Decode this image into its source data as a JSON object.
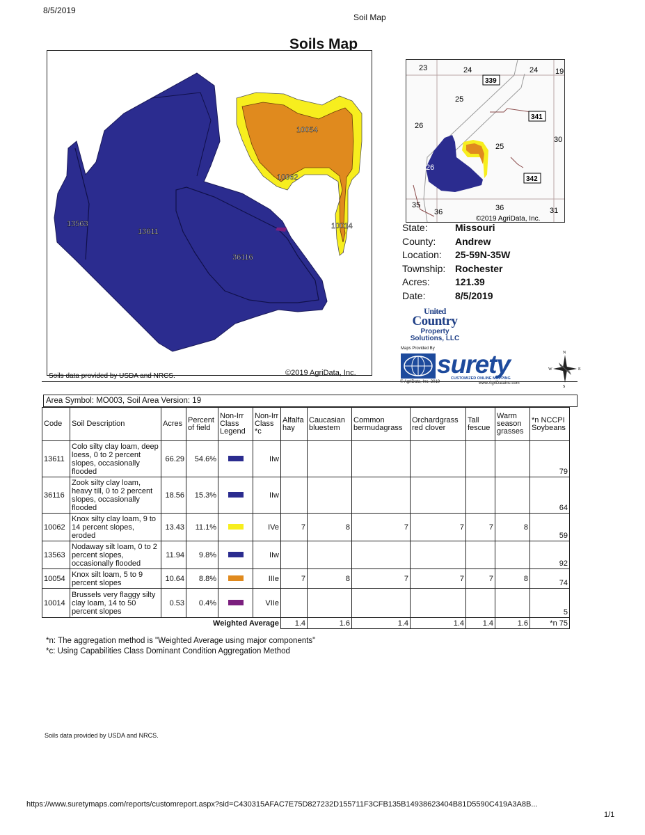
{
  "header": {
    "print_date": "8/5/2019",
    "print_title": "Soil Map"
  },
  "title": "Soils Map",
  "map": {
    "labels": [
      "13563",
      "13611",
      "36116",
      "10054",
      "10062",
      "10014"
    ],
    "credit_left": "Soils data provided by USDA and NRCS.",
    "credit_right": "©2019 AgriData, Inc.",
    "colors": {
      "dark_blue": "#2b2c8f",
      "yellow": "#f7ee1e",
      "orange": "#e08a1e",
      "purple": "#7b1f7e"
    }
  },
  "inset": {
    "sections": [
      "23",
      "24",
      "24",
      "19",
      "25",
      "26",
      "25",
      "30",
      "26",
      "35",
      "36",
      "36",
      "31"
    ],
    "routes": [
      "339",
      "341",
      "342"
    ],
    "credit": "©2019 AgriData, Inc."
  },
  "info": [
    {
      "key": "State:",
      "value": "Missouri"
    },
    {
      "key": "County:",
      "value": "Andrew"
    },
    {
      "key": "Location:",
      "value": "25-59N-35W"
    },
    {
      "key": "Township:",
      "value": "Rochester"
    },
    {
      "key": "Acres:",
      "value": "121.39"
    },
    {
      "key": "Date:",
      "value": "8/5/2019"
    }
  ],
  "logo": {
    "united": "United",
    "country": "Country",
    "line1": "Property",
    "line2": "Solutions, LLC"
  },
  "surety": {
    "provided_by": "Maps Provided By",
    "word": "surety",
    "tagline": "CUSTOMIZED ONLINE MAPPING",
    "foot_left": "© AgriData, Inc. 2019",
    "foot_right": "www.AgriDataInc.com",
    "compass": {
      "n": "N",
      "e": "E",
      "s": "S",
      "w": "W"
    }
  },
  "table": {
    "area_symbol": "Area Symbol: MO003, Soil Area Version: 19",
    "headers": [
      "Code",
      "Soil Description",
      "Acres",
      "Percent of field",
      "Non-Irr Class Legend",
      "Non-Irr Class *c",
      "Alfalfa hay",
      "Caucasian bluestem",
      "Common bermudagrass",
      "Orchardgrass red clover",
      "Tall fescue",
      "Warm season grasses",
      "*n NCCPI Soybeans"
    ],
    "rows": [
      {
        "code": "13611",
        "desc": "Colo silty clay loam, deep loess, 0 to 2 percent slopes, occasionally flooded",
        "acres": "66.29",
        "pct": "54.6%",
        "color": "#2b2c8f",
        "cls": "IIw",
        "alfalfa": "",
        "cauc": "",
        "bermuda": "",
        "orchard": "",
        "fescue": "",
        "warm": "",
        "nccpi": "79"
      },
      {
        "code": "36116",
        "desc": "Zook silty clay loam, heavy till, 0 to 2 percent slopes, occasionally flooded",
        "acres": "18.56",
        "pct": "15.3%",
        "color": "#2b2c8f",
        "cls": "IIw",
        "alfalfa": "",
        "cauc": "",
        "bermuda": "",
        "orchard": "",
        "fescue": "",
        "warm": "",
        "nccpi": "64"
      },
      {
        "code": "10062",
        "desc": "Knox silty clay loam, 9 to 14 percent slopes, eroded",
        "acres": "13.43",
        "pct": "11.1%",
        "color": "#f7ee1e",
        "cls": "IVe",
        "alfalfa": "7",
        "cauc": "8",
        "bermuda": "7",
        "orchard": "7",
        "fescue": "7",
        "warm": "8",
        "nccpi": "59"
      },
      {
        "code": "13563",
        "desc": "Nodaway silt loam, 0 to 2 percent slopes, occasionally flooded",
        "acres": "11.94",
        "pct": "9.8%",
        "color": "#2b2c8f",
        "cls": "IIw",
        "alfalfa": "",
        "cauc": "",
        "bermuda": "",
        "orchard": "",
        "fescue": "",
        "warm": "",
        "nccpi": "92"
      },
      {
        "code": "10054",
        "desc": "Knox silt loam, 5 to 9 percent slopes",
        "acres": "10.64",
        "pct": "8.8%",
        "color": "#e08a1e",
        "cls": "IIIe",
        "alfalfa": "7",
        "cauc": "8",
        "bermuda": "7",
        "orchard": "7",
        "fescue": "7",
        "warm": "8",
        "nccpi": "74"
      },
      {
        "code": "10014",
        "desc": "Brussels very flaggy silty clay loam, 14 to 50 percent slopes",
        "acres": "0.53",
        "pct": "0.4%",
        "color": "#7b1f7e",
        "cls": "VIIe",
        "alfalfa": "",
        "cauc": "",
        "bermuda": "",
        "orchard": "",
        "fescue": "",
        "warm": "",
        "nccpi": "5"
      }
    ],
    "weighted": {
      "label": "Weighted Average",
      "alfalfa": "1.4",
      "cauc": "1.6",
      "bermuda": "1.4",
      "orchard": "1.4",
      "fescue": "1.4",
      "warm": "1.6",
      "nccpi": "*n 75"
    }
  },
  "notes": [
    "*n: The aggregation method is \"Weighted Average using major components\"",
    "*c: Using Capabilities Class Dominant Condition Aggregation Method"
  ],
  "footer": {
    "credit": "Soils data provided by USDA and NRCS.",
    "url": "https://www.suretymaps.com/reports/customreport.aspx?sid=C430315AFAC7E75D827232D155711F3CFB135B14938623404B81D5590C419A3A8B...",
    "page": "1/1"
  }
}
